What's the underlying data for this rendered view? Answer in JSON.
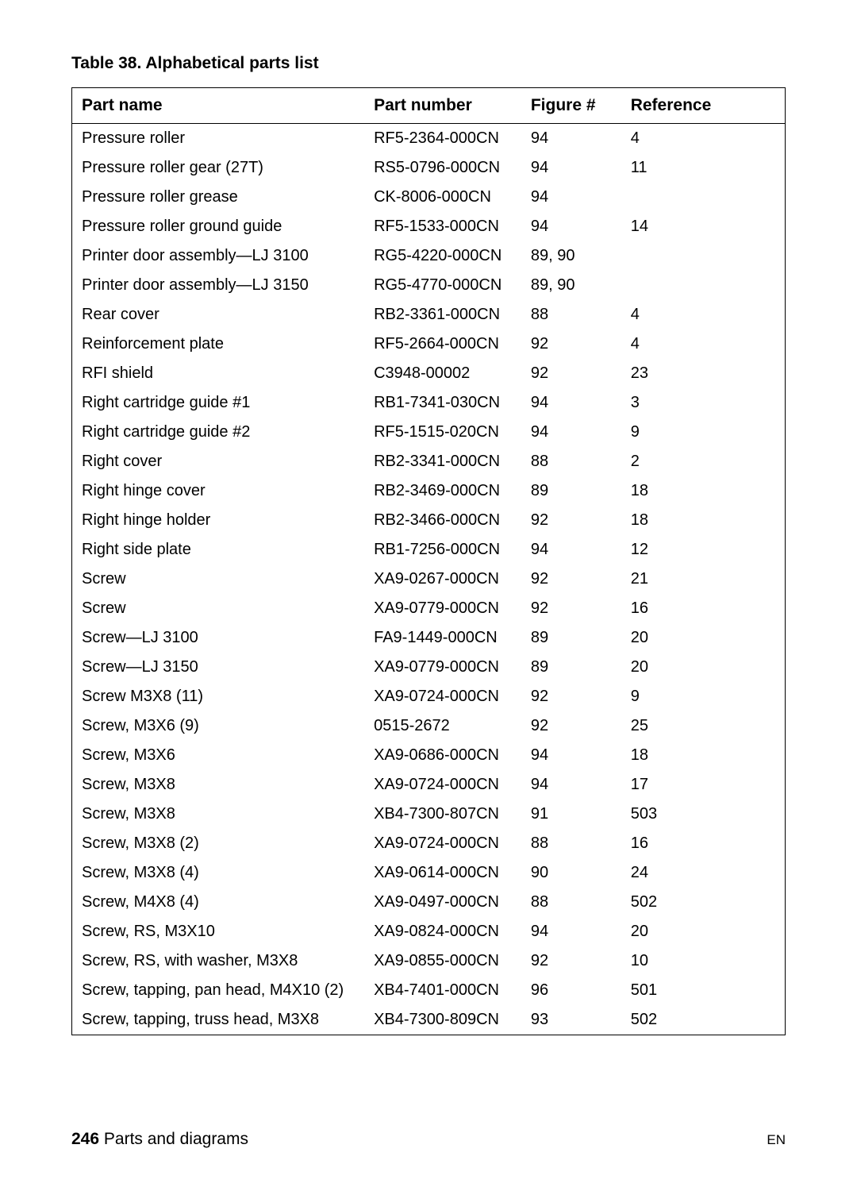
{
  "caption": "Table 38.   Alphabetical parts list",
  "table": {
    "columns": [
      "Part name",
      "Part number",
      "Figure #",
      "Reference"
    ],
    "rows": [
      [
        "Pressure roller",
        "RF5-2364-000CN",
        "94",
        "4"
      ],
      [
        "Pressure roller gear (27T)",
        "RS5-0796-000CN",
        "94",
        "11"
      ],
      [
        "Pressure roller grease",
        "CK-8006-000CN",
        "94",
        ""
      ],
      [
        "Pressure roller ground guide",
        "RF5-1533-000CN",
        "94",
        "14"
      ],
      [
        "Printer door assembly—LJ 3100",
        "RG5-4220-000CN",
        "89, 90",
        ""
      ],
      [
        "Printer door assembly—LJ 3150",
        "RG5-4770-000CN",
        "89, 90",
        ""
      ],
      [
        "Rear cover",
        "RB2-3361-000CN",
        "88",
        "4"
      ],
      [
        "Reinforcement plate",
        "RF5-2664-000CN",
        "92",
        "4"
      ],
      [
        "RFI shield",
        "C3948-00002",
        "92",
        "23"
      ],
      [
        "Right cartridge guide #1",
        "RB1-7341-030CN",
        "94",
        "3"
      ],
      [
        "Right cartridge guide #2",
        "RF5-1515-020CN",
        "94",
        "9"
      ],
      [
        "Right cover",
        "RB2-3341-000CN",
        "88",
        "2"
      ],
      [
        "Right hinge cover",
        "RB2-3469-000CN",
        "89",
        "18"
      ],
      [
        "Right hinge holder",
        "RB2-3466-000CN",
        "92",
        "18"
      ],
      [
        "Right side plate",
        "RB1-7256-000CN",
        "94",
        "12"
      ],
      [
        "Screw",
        "XA9-0267-000CN",
        "92",
        "21"
      ],
      [
        "Screw",
        "XA9-0779-000CN",
        "92",
        "16"
      ],
      [
        "Screw—LJ 3100",
        "FA9-1449-000CN",
        "89",
        "20"
      ],
      [
        "Screw—LJ 3150",
        "XA9-0779-000CN",
        "89",
        "20"
      ],
      [
        "Screw M3X8 (11)",
        "XA9-0724-000CN",
        "92",
        "9"
      ],
      [
        "Screw, M3X6 (9)",
        "0515-2672",
        "92",
        "25"
      ],
      [
        "Screw, M3X6",
        "XA9-0686-000CN",
        "94",
        "18"
      ],
      [
        "Screw, M3X8",
        "XA9-0724-000CN",
        "94",
        "17"
      ],
      [
        "Screw, M3X8",
        "XB4-7300-807CN",
        "91",
        "503"
      ],
      [
        "Screw, M3X8 (2)",
        "XA9-0724-000CN",
        "88",
        "16"
      ],
      [
        "Screw, M3X8 (4)",
        "XA9-0614-000CN",
        "90",
        "24"
      ],
      [
        "Screw, M4X8 (4)",
        "XA9-0497-000CN",
        "88",
        "502"
      ],
      [
        "Screw, RS, M3X10",
        "XA9-0824-000CN",
        "94",
        "20"
      ],
      [
        "Screw, RS, with washer, M3X8",
        "XA9-0855-000CN",
        "92",
        "10"
      ],
      [
        "Screw, tapping, pan head, M4X10 (2)",
        "XB4-7401-000CN",
        "96",
        "501"
      ],
      [
        "Screw, tapping, truss head, M3X8",
        "XB4-7300-809CN",
        "93",
        "502"
      ]
    ]
  },
  "footer": {
    "page_number": "246",
    "section_title": "Parts and diagrams",
    "right_label": "EN"
  }
}
